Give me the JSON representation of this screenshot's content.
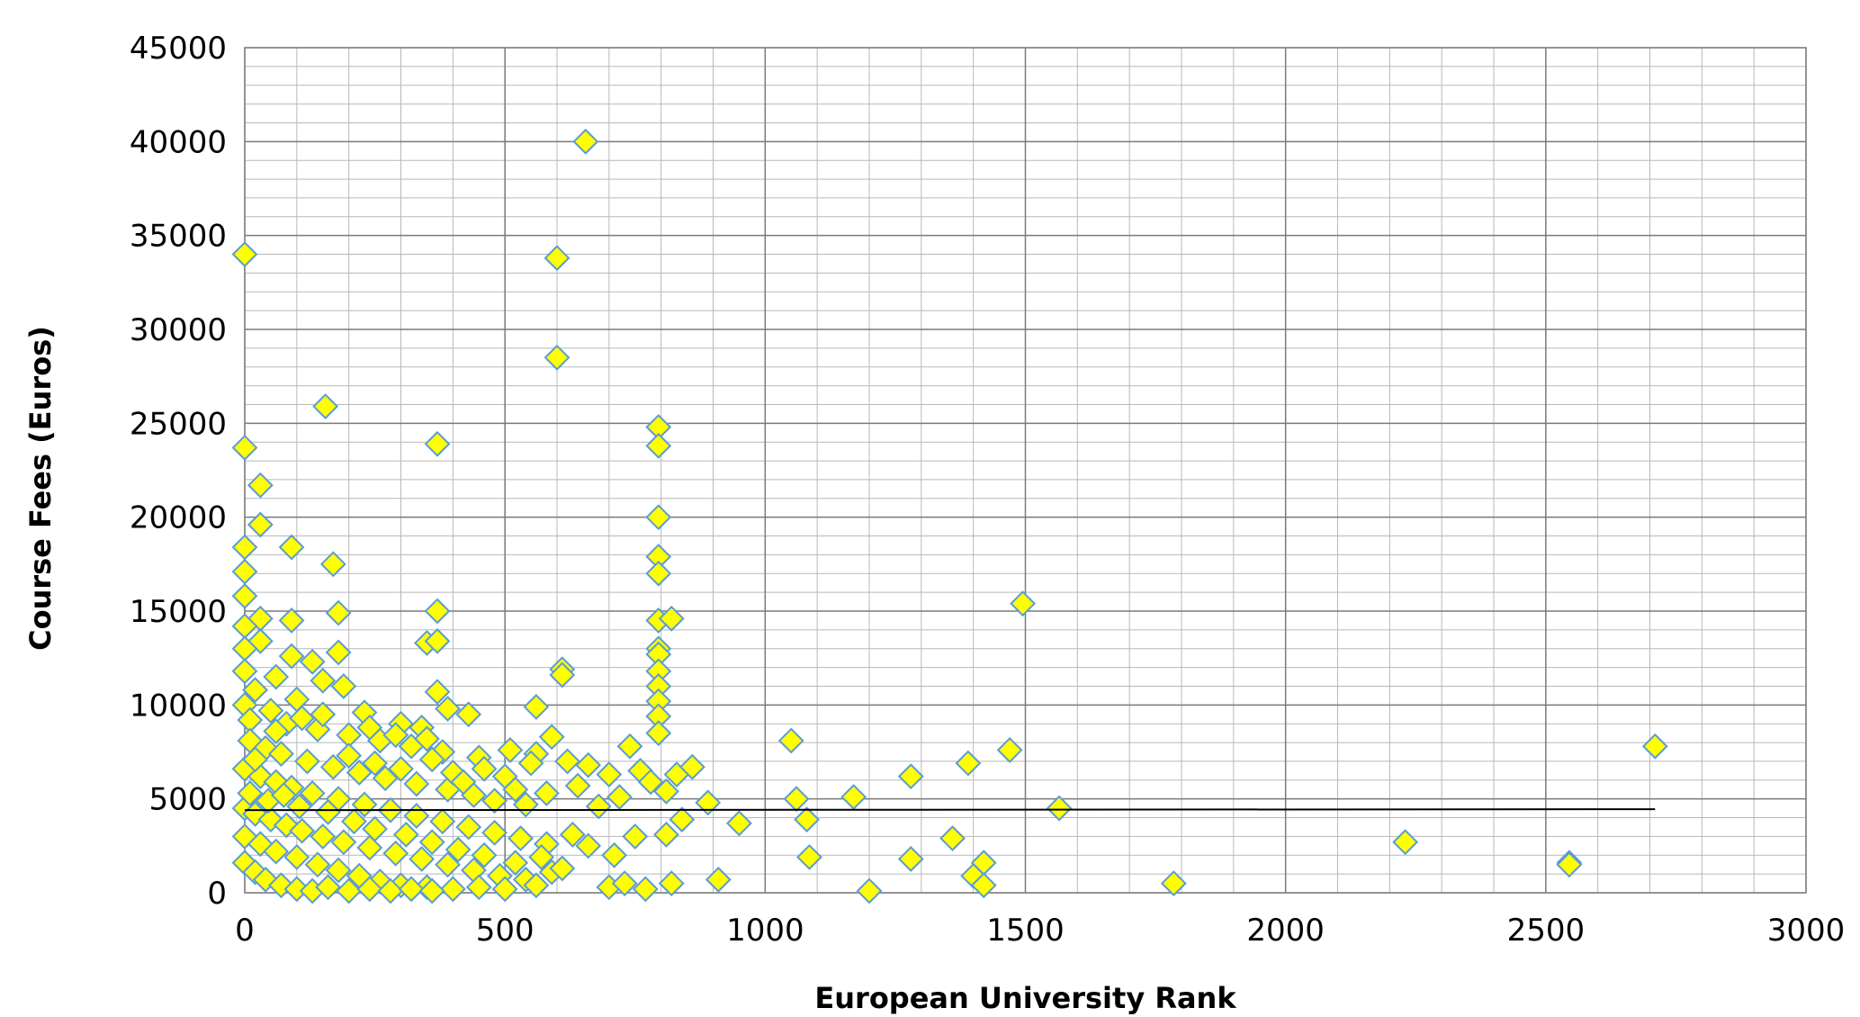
{
  "chart_data": {
    "type": "scatter",
    "title": "",
    "xlabel": "European University Rank",
    "ylabel": "Course Fees (Euros)",
    "xlim": [
      0,
      3000
    ],
    "ylim": [
      0,
      45000
    ],
    "x_ticks": [
      0,
      500,
      1000,
      1500,
      2000,
      2500,
      3000
    ],
    "y_ticks": [
      0,
      5000,
      10000,
      15000,
      20000,
      25000,
      30000,
      35000,
      40000,
      45000
    ],
    "grid": true,
    "legend": "none",
    "marker": "diamond",
    "marker_fill": "#ffff00",
    "marker_edge": "#5b9bd5",
    "trendline": {
      "x": [
        0,
        2710
      ],
      "y": [
        4400,
        4450
      ],
      "color": "#000000"
    },
    "series": [
      {
        "points": [
          [
            0,
            34000
          ],
          [
            600,
            33800
          ],
          [
            600,
            28500
          ],
          [
            655,
            40000
          ],
          [
            155,
            25900
          ],
          [
            0,
            23700
          ],
          [
            370,
            23900
          ],
          [
            795,
            24800
          ],
          [
            795,
            23800
          ],
          [
            30,
            21700
          ],
          [
            30,
            19600
          ],
          [
            0,
            18400
          ],
          [
            90,
            18400
          ],
          [
            170,
            17500
          ],
          [
            795,
            20000
          ],
          [
            795,
            17900
          ],
          [
            795,
            17000
          ],
          [
            0,
            17100
          ],
          [
            0,
            15800
          ],
          [
            30,
            14600
          ],
          [
            90,
            14500
          ],
          [
            180,
            14900
          ],
          [
            370,
            15000
          ],
          [
            1495,
            15400
          ],
          [
            795,
            14500
          ],
          [
            820,
            14600
          ],
          [
            795,
            13000
          ],
          [
            795,
            12700
          ],
          [
            795,
            11800
          ],
          [
            795,
            11000
          ],
          [
            795,
            10200
          ],
          [
            795,
            9400
          ],
          [
            795,
            8500
          ],
          [
            350,
            13300
          ],
          [
            370,
            13400
          ],
          [
            30,
            13400
          ],
          [
            0,
            14200
          ],
          [
            0,
            13000
          ],
          [
            130,
            12300
          ],
          [
            180,
            12800
          ],
          [
            610,
            11900
          ],
          [
            610,
            11600
          ],
          [
            90,
            12600
          ],
          [
            0,
            11800
          ],
          [
            60,
            11500
          ],
          [
            150,
            11300
          ],
          [
            190,
            11000
          ],
          [
            20,
            10800
          ],
          [
            370,
            10700
          ],
          [
            560,
            9900
          ],
          [
            430,
            9500
          ],
          [
            390,
            9800
          ],
          [
            100,
            10300
          ],
          [
            0,
            10000
          ],
          [
            50,
            9700
          ],
          [
            230,
            9600
          ],
          [
            300,
            9000
          ],
          [
            340,
            8800
          ],
          [
            10,
            9200
          ],
          [
            80,
            9000
          ],
          [
            140,
            8700
          ],
          [
            200,
            8400
          ],
          [
            260,
            8100
          ],
          [
            320,
            7800
          ],
          [
            380,
            7500
          ],
          [
            450,
            7200
          ],
          [
            510,
            7600
          ],
          [
            560,
            7400
          ],
          [
            590,
            8300
          ],
          [
            620,
            7000
          ],
          [
            660,
            6800
          ],
          [
            700,
            6300
          ],
          [
            740,
            7800
          ],
          [
            760,
            6500
          ],
          [
            830,
            6300
          ],
          [
            860,
            6700
          ],
          [
            890,
            4800
          ],
          [
            10,
            8100
          ],
          [
            40,
            7700
          ],
          [
            70,
            7400
          ],
          [
            120,
            7000
          ],
          [
            170,
            6700
          ],
          [
            220,
            6400
          ],
          [
            270,
            6100
          ],
          [
            330,
            5800
          ],
          [
            390,
            5500
          ],
          [
            440,
            5200
          ],
          [
            480,
            4900
          ],
          [
            540,
            4700
          ],
          [
            580,
            5300
          ],
          [
            640,
            5700
          ],
          [
            680,
            4600
          ],
          [
            720,
            5100
          ],
          [
            780,
            5900
          ],
          [
            810,
            5400
          ],
          [
            840,
            3900
          ],
          [
            0,
            6600
          ],
          [
            30,
            6200
          ],
          [
            60,
            5900
          ],
          [
            90,
            5600
          ],
          [
            130,
            5300
          ],
          [
            180,
            5000
          ],
          [
            230,
            4700
          ],
          [
            280,
            4400
          ],
          [
            330,
            4100
          ],
          [
            380,
            3800
          ],
          [
            430,
            3500
          ],
          [
            480,
            3200
          ],
          [
            530,
            2900
          ],
          [
            580,
            2600
          ],
          [
            630,
            3100
          ],
          [
            660,
            2500
          ],
          [
            710,
            2000
          ],
          [
            750,
            3000
          ],
          [
            810,
            3100
          ],
          [
            950,
            3700
          ],
          [
            1050,
            8100
          ],
          [
            1060,
            5000
          ],
          [
            1080,
            3900
          ],
          [
            1085,
            1900
          ],
          [
            1170,
            5100
          ],
          [
            1280,
            6200
          ],
          [
            1280,
            1800
          ],
          [
            1360,
            2900
          ],
          [
            1390,
            6900
          ],
          [
            1400,
            900
          ],
          [
            1420,
            1600
          ],
          [
            1420,
            400
          ],
          [
            1470,
            7600
          ],
          [
            1565,
            4500
          ],
          [
            1785,
            500
          ],
          [
            1200,
            100
          ],
          [
            2230,
            2700
          ],
          [
            2545,
            1600
          ],
          [
            2545,
            1500
          ],
          [
            2710,
            7800
          ],
          [
            910,
            700
          ],
          [
            820,
            500
          ],
          [
            0,
            4500
          ],
          [
            20,
            4200
          ],
          [
            50,
            3900
          ],
          [
            80,
            3600
          ],
          [
            110,
            3300
          ],
          [
            150,
            3000
          ],
          [
            190,
            2700
          ],
          [
            240,
            2400
          ],
          [
            290,
            2100
          ],
          [
            340,
            1800
          ],
          [
            390,
            1500
          ],
          [
            440,
            1200
          ],
          [
            490,
            900
          ],
          [
            540,
            700
          ],
          [
            590,
            1100
          ],
          [
            0,
            3000
          ],
          [
            30,
            2600
          ],
          [
            60,
            2200
          ],
          [
            100,
            1900
          ],
          [
            140,
            1500
          ],
          [
            180,
            1200
          ],
          [
            220,
            900
          ],
          [
            260,
            600
          ],
          [
            300,
            400
          ],
          [
            350,
            300
          ],
          [
            400,
            200
          ],
          [
            450,
            300
          ],
          [
            500,
            200
          ],
          [
            560,
            400
          ],
          [
            610,
            1300
          ],
          [
            700,
            300
          ],
          [
            730,
            500
          ],
          [
            770,
            200
          ],
          [
            0,
            1600
          ],
          [
            20,
            1100
          ],
          [
            40,
            700
          ],
          [
            70,
            400
          ],
          [
            100,
            200
          ],
          [
            130,
            100
          ],
          [
            160,
            300
          ],
          [
            200,
            100
          ],
          [
            240,
            200
          ],
          [
            280,
            100
          ],
          [
            320,
            200
          ],
          [
            360,
            100
          ],
          [
            10,
            5300
          ],
          [
            45,
            4900
          ],
          [
            75,
            5200
          ],
          [
            105,
            4600
          ],
          [
            160,
            4300
          ],
          [
            210,
            3800
          ],
          [
            250,
            3400
          ],
          [
            310,
            3100
          ],
          [
            360,
            2700
          ],
          [
            410,
            2300
          ],
          [
            460,
            2000
          ],
          [
            520,
            1600
          ],
          [
            570,
            1900
          ],
          [
            400,
            6400
          ],
          [
            420,
            5900
          ],
          [
            460,
            6600
          ],
          [
            500,
            6200
          ],
          [
            520,
            5500
          ],
          [
            550,
            6900
          ],
          [
            240,
            8800
          ],
          [
            290,
            8400
          ],
          [
            350,
            8200
          ],
          [
            150,
            9500
          ],
          [
            110,
            9300
          ],
          [
            60,
            8600
          ],
          [
            20,
            7100
          ],
          [
            200,
            7300
          ],
          [
            250,
            6900
          ],
          [
            300,
            6600
          ],
          [
            360,
            7100
          ]
        ]
      }
    ]
  }
}
